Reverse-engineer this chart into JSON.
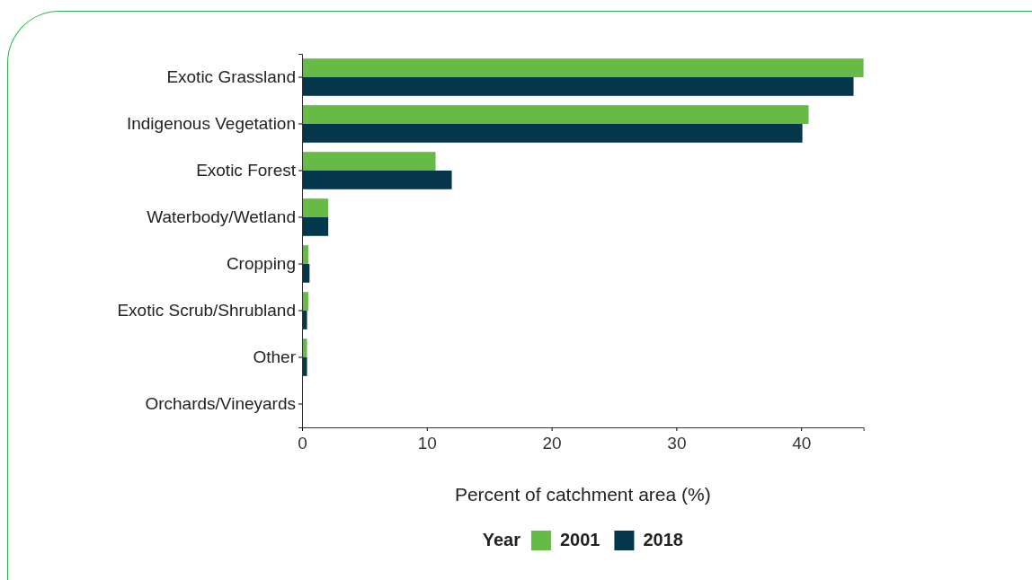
{
  "chart_data": {
    "type": "bar",
    "orientation": "horizontal",
    "xlabel": "Percent of catchment area (%)",
    "legend_title": "Year",
    "legend": "bottom",
    "grid": false,
    "categories": [
      "Exotic Grassland",
      "Indigenous Vegetation",
      "Exotic Forest",
      "Waterbody/Wetland",
      "Cropping",
      "Exotic Scrub/Shrubland",
      "Other",
      "Orchards/Vineyards"
    ],
    "xlim": [
      0,
      45
    ],
    "xticks": [
      0,
      10,
      20,
      30,
      40
    ],
    "series": [
      {
        "name": "2001",
        "color": "#66bb46",
        "values": [
          45.0,
          40.6,
          10.7,
          2.1,
          0.5,
          0.5,
          0.4,
          0
        ]
      },
      {
        "name": "2018",
        "color": "#04364c",
        "values": [
          44.2,
          40.1,
          12.0,
          2.1,
          0.6,
          0.4,
          0.4,
          0
        ]
      }
    ]
  }
}
